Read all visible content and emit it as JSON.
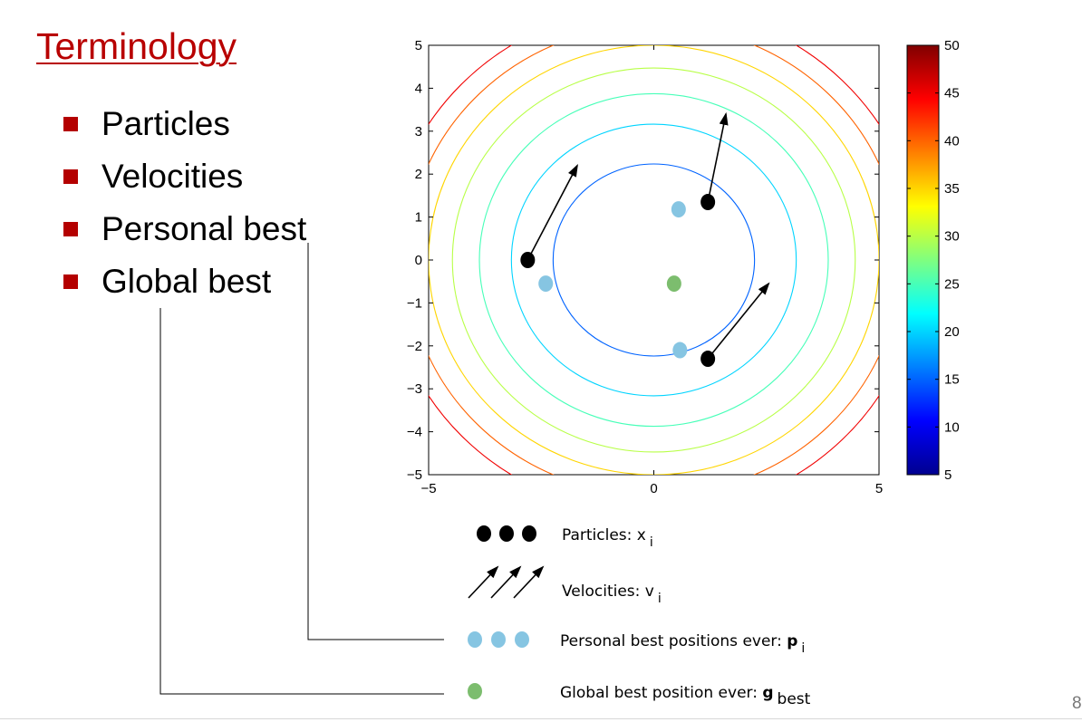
{
  "slide": {
    "title": "Terminology",
    "bullets": [
      "Particles",
      "Velocities",
      "Personal best",
      "Global best"
    ],
    "page_number": "8"
  },
  "chart_data": {
    "type": "contour",
    "xlim": [
      -5,
      5
    ],
    "ylim": [
      -5,
      5
    ],
    "x_ticks": [
      -5,
      0,
      5
    ],
    "y_ticks": [
      -5,
      -4,
      -3,
      -2,
      -1,
      0,
      1,
      2,
      3,
      4,
      5
    ],
    "contour_function": "z = 10 + x^2 + y^2 (circular contours centered at origin)",
    "contour_levels": [
      15,
      20,
      25,
      30,
      35,
      40,
      45
    ],
    "colorbar": {
      "min": 5,
      "max": 50,
      "ticks": [
        5,
        10,
        15,
        20,
        25,
        30,
        35,
        40,
        45,
        50
      ],
      "colormap": "jet"
    },
    "particles": [
      {
        "x": -2.8,
        "y": 0.0,
        "vx": 1.1,
        "vy": 2.2
      },
      {
        "x": 1.2,
        "y": 1.35,
        "vx": 0.4,
        "vy": 2.05
      },
      {
        "x": 1.2,
        "y": -2.3,
        "vx": 1.35,
        "vy": 1.75
      }
    ],
    "personal_best": [
      {
        "x": -2.4,
        "y": -0.55
      },
      {
        "x": 0.55,
        "y": 1.18
      },
      {
        "x": 0.58,
        "y": -2.1
      }
    ],
    "global_best": {
      "x": 0.45,
      "y": -0.55
    },
    "colors": {
      "particle": "#000000",
      "personal_best": "#86c5e2",
      "global_best": "#7cbd6e",
      "arrow": "#000000"
    }
  },
  "legend": {
    "particles": {
      "label": "Particles: x",
      "sub": "i"
    },
    "velocities": {
      "label": "Velocities: v",
      "sub": "i"
    },
    "personal_best": {
      "label": "Personal best positions ever: ",
      "bold": "p",
      "sub": "i"
    },
    "global_best": {
      "label": "Global best position ever: ",
      "bold": "g",
      "sub": "best"
    }
  }
}
